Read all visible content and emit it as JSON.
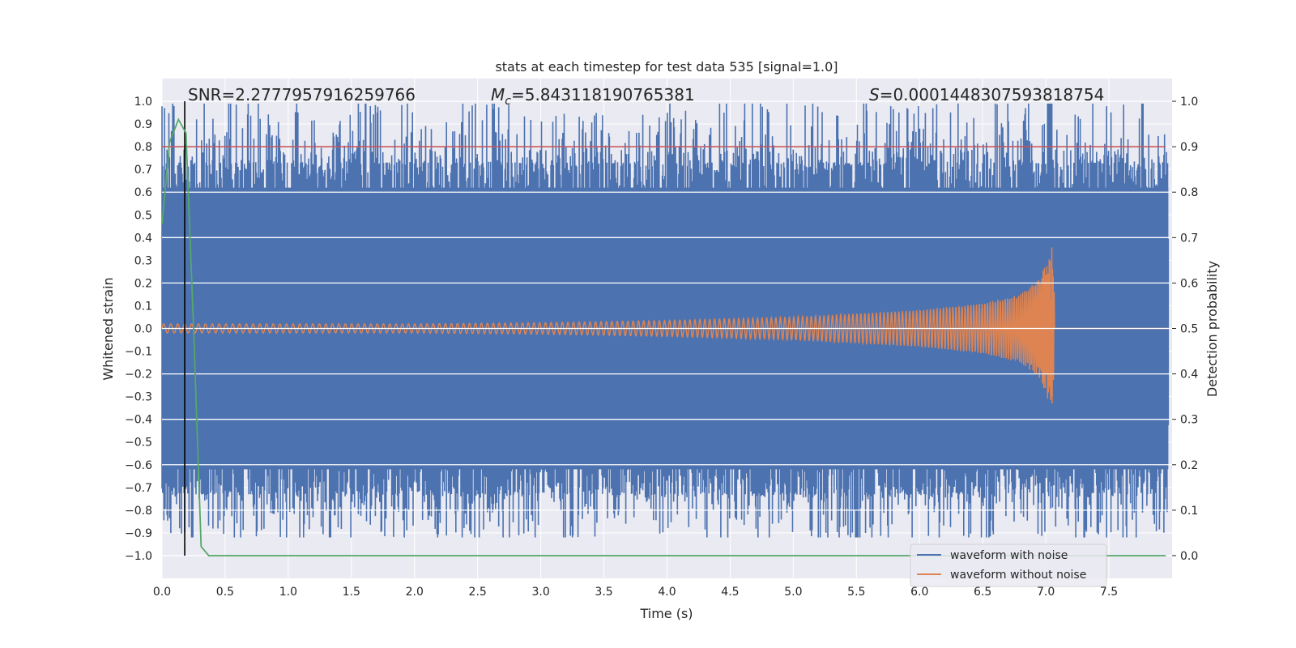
{
  "chart_data": {
    "type": "line",
    "title": "stats at each timestep for test data 535 [signal=1.0]",
    "xlabel": "Time (s)",
    "ylabel": "Whitened strain",
    "y2label": "Detection probability",
    "xlim": [
      0.0,
      8.0
    ],
    "ylim": [
      -1.1,
      1.1
    ],
    "y2lim": [
      -0.05,
      1.05
    ],
    "xticks": [
      "0.0",
      "0.5",
      "1.0",
      "1.5",
      "2.0",
      "2.5",
      "3.0",
      "3.5",
      "4.0",
      "4.5",
      "5.0",
      "5.5",
      "6.0",
      "6.5",
      "7.0",
      "7.5"
    ],
    "yticks": [
      "1.0",
      "0.9",
      "0.8",
      "0.7",
      "0.6",
      "0.5",
      "0.4",
      "0.3",
      "0.2",
      "0.1",
      "0.0",
      "−0.1",
      "−0.2",
      "−0.3",
      "−0.4",
      "−0.5",
      "−0.6",
      "−0.7",
      "−0.8",
      "−0.9",
      "−1.0"
    ],
    "y2ticks": [
      "1.0",
      "0.9",
      "0.8",
      "0.7",
      "0.6",
      "0.5",
      "0.4",
      "0.3",
      "0.2",
      "0.1",
      "0.0"
    ],
    "annotations": {
      "snr": "SNR=2.2777957916259766",
      "mc_symbol": "M",
      "mc_subscript": "c",
      "mc_value": "=5.843118190765381",
      "s_symbol": "S",
      "s_value": "=0.0001448307593818754"
    },
    "legend": {
      "position": "lower-right",
      "entries": [
        "waveform with noise",
        "waveform without noise"
      ]
    },
    "series": [
      {
        "name": "waveform with noise",
        "color": "#4c72b0",
        "description_values": {
          "upper_envelope_typical": 0.78,
          "lower_envelope_typical": -0.8,
          "max": 0.99,
          "min": -0.92
        }
      },
      {
        "name": "waveform without noise",
        "color": "#dd8452",
        "envelope": {
          "x": [
            0.0,
            1.0,
            2.0,
            3.0,
            4.0,
            5.0,
            6.0,
            6.5,
            6.8,
            6.95,
            7.05,
            7.08,
            8.0
          ],
          "amplitude": [
            0.02,
            0.02,
            0.02,
            0.025,
            0.035,
            0.05,
            0.08,
            0.11,
            0.15,
            0.22,
            0.36,
            0.0,
            0.0
          ]
        },
        "merger_time": 7.07
      },
      {
        "name": "detection probability",
        "color": "#55a868",
        "axis": "right",
        "x": [
          0.0,
          0.06,
          0.13,
          0.19,
          0.25,
          0.31,
          0.37,
          1.0,
          2.0,
          3.0,
          4.0,
          5.0,
          6.0,
          7.0,
          7.95
        ],
        "values": [
          0.73,
          0.91,
          0.96,
          0.93,
          0.5,
          0.02,
          0.0,
          0.0,
          0.0,
          0.0,
          0.0,
          0.0,
          0.0,
          0.0,
          0.0
        ]
      }
    ],
    "threshold_line": {
      "axis": "right",
      "value": 0.9,
      "color": "#c44e52"
    },
    "vertical_line": {
      "x": 0.18,
      "color": "#000000"
    },
    "grid": true,
    "background": "#eaeaf2"
  }
}
